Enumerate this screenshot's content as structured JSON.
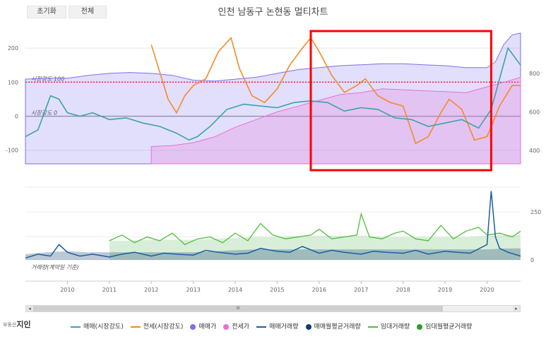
{
  "toolbar": {
    "reset_label": "초기화",
    "all_label": "전체"
  },
  "scrollbar": {
    "left_arrow": "◂",
    "right_arrow": "▸",
    "thumb_grip": "III"
  },
  "brand": {
    "prefix": "부동산",
    "name": "지인"
  },
  "chart_data": [
    {
      "type": "area",
      "title": "인천 남동구 논현동 멀티차트",
      "x_ticks": [
        "2010",
        "2011",
        "2012",
        "2013",
        "2014",
        "2015",
        "2016",
        "2017",
        "2018",
        "2019",
        "2020"
      ],
      "x_range": [
        2009.0,
        2020.8
      ],
      "left_axis": {
        "ticks": [
          200,
          100,
          0,
          -100
        ],
        "range": [
          -140,
          250
        ]
      },
      "right_axis": {
        "ticks": [
          800,
          600,
          400
        ],
        "range": [
          330,
          1020
        ]
      },
      "plot_bands": [
        {
          "value": 100,
          "label": "시장강도 100",
          "color": "#ff0000"
        },
        {
          "value": 0,
          "label": "시장강도 0",
          "color": "#999999"
        }
      ],
      "series": [
        {
          "name": "매매(시장강도)",
          "axis": "left",
          "color": "#3aa3a8",
          "x": [
            2009.0,
            2009.3,
            2009.6,
            2009.8,
            2010.0,
            2010.3,
            2010.6,
            2011.0,
            2011.4,
            2011.8,
            2012.2,
            2012.6,
            2012.9,
            2013.1,
            2013.4,
            2013.8,
            2014.2,
            2014.6,
            2015.0,
            2015.4,
            2015.8,
            2016.2,
            2016.6,
            2017.0,
            2017.4,
            2017.8,
            2018.2,
            2018.6,
            2019.0,
            2019.4,
            2019.8,
            2020.1,
            2020.3,
            2020.5,
            2020.8
          ],
          "y": [
            -60,
            -40,
            60,
            50,
            10,
            0,
            10,
            -10,
            -5,
            -20,
            -30,
            -50,
            -70,
            -60,
            -30,
            20,
            35,
            30,
            25,
            40,
            45,
            40,
            15,
            25,
            20,
            -5,
            -10,
            -30,
            -20,
            -10,
            -35,
            20,
            110,
            200,
            150
          ]
        },
        {
          "name": "전세(시장강도)",
          "axis": "left",
          "color": "#f28b2c",
          "x": [
            2012.0,
            2012.2,
            2012.4,
            2012.6,
            2012.8,
            2013.0,
            2013.3,
            2013.6,
            2013.9,
            2014.1,
            2014.4,
            2014.7,
            2015.0,
            2015.3,
            2015.6,
            2015.8,
            2016.0,
            2016.3,
            2016.6,
            2016.9,
            2017.1,
            2017.4,
            2017.7,
            2018.0,
            2018.3,
            2018.6,
            2018.9,
            2019.1,
            2019.4,
            2019.7,
            2020.0,
            2020.3,
            2020.6,
            2020.8
          ],
          "y": [
            210,
            130,
            50,
            10,
            60,
            90,
            110,
            190,
            230,
            140,
            60,
            40,
            80,
            150,
            200,
            230,
            190,
            120,
            70,
            90,
            110,
            60,
            40,
            30,
            -80,
            -60,
            10,
            50,
            20,
            -70,
            -60,
            30,
            90,
            90
          ]
        },
        {
          "name": "매매가",
          "axis": "right",
          "color": "#7b6ef0",
          "x": [
            2009.0,
            2009.5,
            2010.0,
            2010.5,
            2011.0,
            2011.5,
            2012.0,
            2012.5,
            2013.0,
            2013.5,
            2014.0,
            2014.5,
            2015.0,
            2015.5,
            2016.0,
            2016.5,
            2017.0,
            2017.5,
            2018.0,
            2018.5,
            2019.0,
            2019.5,
            2020.0,
            2020.2,
            2020.4,
            2020.6,
            2020.8
          ],
          "y": [
            770,
            775,
            775,
            790,
            800,
            805,
            800,
            790,
            765,
            760,
            770,
            780,
            800,
            820,
            830,
            840,
            845,
            850,
            850,
            845,
            840,
            830,
            830,
            860,
            950,
            1000,
            1010
          ]
        },
        {
          "name": "전세가",
          "axis": "right",
          "color": "#e86fd3",
          "x": [
            2012.0,
            2012.5,
            2013.0,
            2013.5,
            2014.0,
            2014.5,
            2015.0,
            2015.5,
            2016.0,
            2016.5,
            2017.0,
            2017.5,
            2018.0,
            2018.5,
            2019.0,
            2019.5,
            2020.0,
            2020.5,
            2020.8
          ],
          "y": [
            420,
            425,
            440,
            470,
            520,
            560,
            600,
            630,
            660,
            690,
            700,
            720,
            715,
            710,
            705,
            700,
            730,
            760,
            780
          ]
        },
        {
          "name": "매매거래량",
          "axis": "volume",
          "color": "#1a5fa0",
          "x": [
            2009.0,
            2009.3,
            2009.6,
            2009.8,
            2010.0,
            2010.3,
            2010.6,
            2011.0,
            2011.3,
            2011.6,
            2012.0,
            2012.3,
            2012.6,
            2013.0,
            2013.3,
            2013.6,
            2014.0,
            2014.3,
            2014.6,
            2015.0,
            2015.3,
            2015.6,
            2016.0,
            2016.3,
            2016.6,
            2017.0,
            2017.3,
            2017.6,
            2018.0,
            2018.3,
            2018.6,
            2019.0,
            2019.3,
            2019.6,
            2020.0,
            2020.1,
            2020.2,
            2020.3,
            2020.5,
            2020.8
          ],
          "y": [
            10,
            30,
            20,
            80,
            40,
            20,
            30,
            15,
            30,
            40,
            20,
            35,
            30,
            25,
            50,
            40,
            30,
            35,
            60,
            45,
            40,
            70,
            35,
            50,
            40,
            30,
            45,
            40,
            35,
            50,
            30,
            45,
            40,
            35,
            80,
            360,
            120,
            60,
            40,
            20
          ]
        },
        {
          "name": "매매월평균거래량",
          "axis": "volume",
          "color": "#0b3d6e",
          "x": [
            2009.0,
            2009.5,
            2010.0,
            2010.5,
            2011.0,
            2011.5,
            2012.0,
            2012.5,
            2013.0,
            2013.5,
            2014.0,
            2014.5,
            2015.0,
            2015.5,
            2016.0,
            2016.5,
            2017.0,
            2017.5,
            2018.0,
            2018.5,
            2019.0,
            2019.5,
            2020.0,
            2020.5,
            2020.8
          ],
          "y": [
            30,
            40,
            45,
            40,
            40,
            40,
            40,
            40,
            40,
            45,
            50,
            55,
            55,
            55,
            55,
            55,
            55,
            55,
            55,
            55,
            55,
            55,
            55,
            60,
            60
          ]
        },
        {
          "name": "임대거래량",
          "axis": "volume",
          "color": "#4fbf3d",
          "x": [
            2011.0,
            2011.3,
            2011.6,
            2011.9,
            2012.2,
            2012.5,
            2012.8,
            2013.1,
            2013.4,
            2013.7,
            2014.0,
            2014.3,
            2014.6,
            2014.9,
            2015.2,
            2015.5,
            2015.8,
            2016.0,
            2016.3,
            2016.6,
            2016.9,
            2017.0,
            2017.2,
            2017.5,
            2017.8,
            2018.0,
            2018.3,
            2018.6,
            2018.9,
            2019.2,
            2019.5,
            2019.8,
            2020.0,
            2020.3,
            2020.6,
            2020.8
          ],
          "y": [
            100,
            130,
            90,
            120,
            100,
            140,
            80,
            110,
            120,
            90,
            140,
            100,
            190,
            130,
            110,
            120,
            130,
            160,
            110,
            120,
            130,
            240,
            120,
            110,
            140,
            150,
            110,
            100,
            180,
            110,
            150,
            170,
            130,
            140,
            120,
            150
          ]
        },
        {
          "name": "임대월평균거래량",
          "axis": "volume",
          "color": "#2f9f2a",
          "x": [
            2011.0,
            2011.5,
            2012.0,
            2012.5,
            2013.0,
            2013.5,
            2014.0,
            2014.5,
            2015.0,
            2015.5,
            2016.0,
            2016.5,
            2017.0,
            2017.5,
            2018.0,
            2018.5,
            2019.0,
            2019.5,
            2020.0,
            2020.5,
            2020.8
          ],
          "y": [
            100,
            100,
            105,
            105,
            105,
            110,
            115,
            120,
            120,
            125,
            125,
            125,
            125,
            120,
            120,
            120,
            120,
            120,
            125,
            130,
            130
          ]
        }
      ],
      "volume_axis": {
        "ticks": [
          250,
          0
        ],
        "range": [
          0,
          380
        ],
        "label": "거래량(계약일 기준)"
      },
      "annotation": {
        "shape": "rectangle",
        "color": "#ff0000",
        "x_range": [
          2015.8,
          2020.1
        ]
      },
      "grid": true,
      "legend_position": "bottom"
    }
  ]
}
